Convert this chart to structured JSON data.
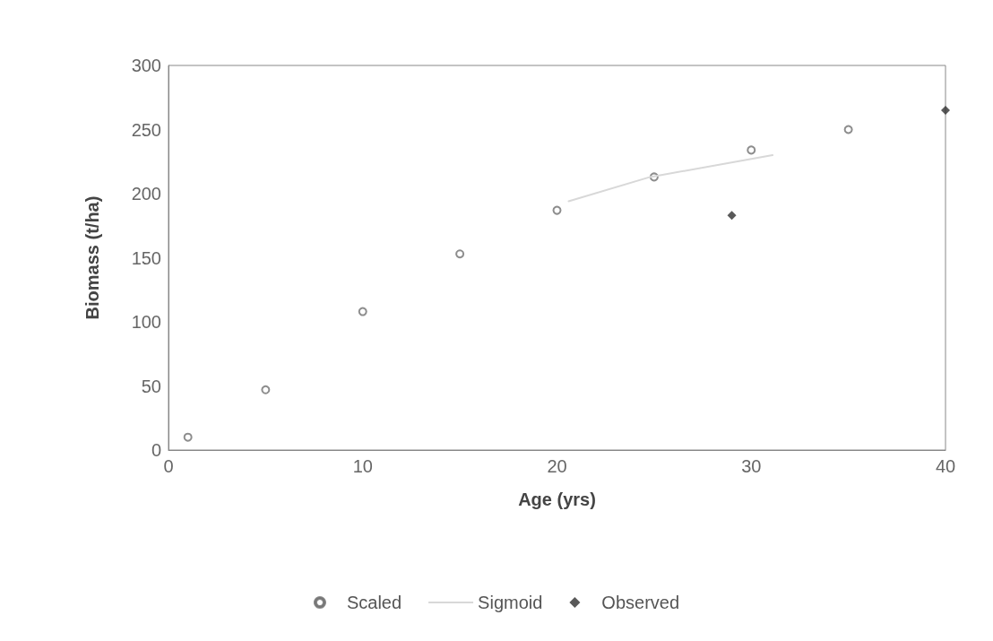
{
  "chart_data": {
    "type": "scatter",
    "xlabel": "Age (yrs)",
    "ylabel": "Biomass (t/ha)",
    "xlim": [
      0,
      40
    ],
    "xticks": [
      0,
      10,
      20,
      30,
      40
    ],
    "ylim": [
      0,
      300
    ],
    "yticks": [
      0,
      50,
      100,
      150,
      200,
      250,
      300
    ],
    "grid": false,
    "legend": "bottom",
    "series": [
      {
        "name": "Scaled",
        "marker": "circle",
        "color": "#707070",
        "x": [
          1,
          5,
          10,
          15,
          20,
          25,
          30,
          35
        ],
        "values": [
          10,
          47,
          108,
          153,
          187,
          213,
          234,
          250
        ]
      },
      {
        "name": "Sigmoid",
        "type": "line",
        "marker": "none",
        "color": "#d8d8d8",
        "x": [
          20.6,
          24.8,
          31.1
        ],
        "values": [
          194,
          213,
          230
        ]
      },
      {
        "name": "Observed",
        "marker": "diamond",
        "color": "#303030",
        "x": [
          29,
          40
        ],
        "values": [
          183,
          265
        ]
      }
    ]
  }
}
